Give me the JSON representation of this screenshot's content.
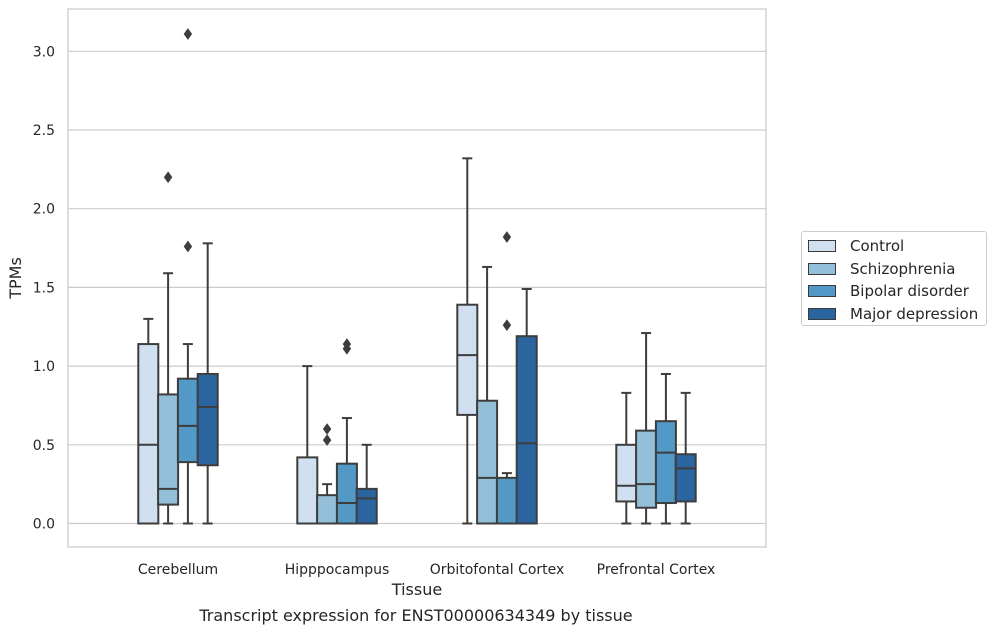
{
  "chart_data": {
    "type": "box",
    "xlabel": "Tissue",
    "ylabel": "TPMs",
    "ylim": [
      -0.15,
      3.27
    ],
    "yticks": [
      "0.0",
      "0.5",
      "1.0",
      "1.5",
      "2.0",
      "2.5",
      "3.0"
    ],
    "grid": true,
    "legend_placement": "right",
    "categories": [
      "Cerebellum",
      "Hipppocampus",
      "Orbitofontal Cortex",
      "Prefrontal Cortex"
    ],
    "series": [
      {
        "name": "Control",
        "color": "#d1e0f0",
        "boxes": [
          {
            "whislo": 0.0,
            "q1": 0.0,
            "med": 0.5,
            "q3": 1.14,
            "whishi": 1.3,
            "fliers": []
          },
          {
            "whislo": 0.0,
            "q1": 0.0,
            "med": 0.0,
            "q3": 0.42,
            "whishi": 1.0,
            "fliers": []
          },
          {
            "whislo": 0.0,
            "q1": 0.69,
            "med": 1.07,
            "q3": 1.39,
            "whishi": 2.32,
            "fliers": []
          },
          {
            "whislo": 0.0,
            "q1": 0.14,
            "med": 0.24,
            "q3": 0.5,
            "whishi": 0.83,
            "fliers": []
          }
        ]
      },
      {
        "name": "Schizophrenia",
        "color": "#94bfd9",
        "boxes": [
          {
            "whislo": 0.0,
            "q1": 0.12,
            "med": 0.22,
            "q3": 0.82,
            "whishi": 1.59,
            "fliers": [
              2.2
            ]
          },
          {
            "whislo": 0.0,
            "q1": 0.0,
            "med": 0.0,
            "q3": 0.18,
            "whishi": 0.25,
            "fliers": [
              0.53,
              0.6
            ]
          },
          {
            "whislo": 0.0,
            "q1": 0.0,
            "med": 0.29,
            "q3": 0.78,
            "whishi": 1.63,
            "fliers": []
          },
          {
            "whislo": 0.0,
            "q1": 0.1,
            "med": 0.25,
            "q3": 0.59,
            "whishi": 1.21,
            "fliers": []
          }
        ]
      },
      {
        "name": "Bipolar disorder",
        "color": "#5299c8",
        "boxes": [
          {
            "whislo": 0.0,
            "q1": 0.39,
            "med": 0.62,
            "q3": 0.92,
            "whishi": 1.14,
            "fliers": [
              1.76,
              3.11
            ]
          },
          {
            "whislo": 0.0,
            "q1": 0.0,
            "med": 0.13,
            "q3": 0.38,
            "whishi": 0.67,
            "fliers": [
              1.11,
              1.14
            ]
          },
          {
            "whislo": 0.0,
            "q1": 0.0,
            "med": 0.0,
            "q3": 0.29,
            "whishi": 0.32,
            "fliers": [
              1.26,
              1.82
            ]
          },
          {
            "whislo": 0.0,
            "q1": 0.13,
            "med": 0.45,
            "q3": 0.65,
            "whishi": 0.95,
            "fliers": []
          }
        ]
      },
      {
        "name": "Major depression",
        "color": "#2a65a0",
        "boxes": [
          {
            "whislo": 0.0,
            "q1": 0.37,
            "med": 0.74,
            "q3": 0.95,
            "whishi": 1.78,
            "fliers": []
          },
          {
            "whislo": 0.0,
            "q1": 0.0,
            "med": 0.16,
            "q3": 0.22,
            "whishi": 0.5,
            "fliers": []
          },
          {
            "whislo": 0.0,
            "q1": 0.0,
            "med": 0.51,
            "q3": 1.19,
            "whishi": 1.49,
            "fliers": []
          },
          {
            "whislo": 0.0,
            "q1": 0.14,
            "med": 0.35,
            "q3": 0.44,
            "whishi": 0.83,
            "fliers": []
          }
        ]
      }
    ]
  },
  "caption": "Transcript expression for ENST00000634349 by tissue"
}
